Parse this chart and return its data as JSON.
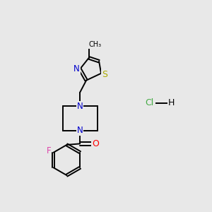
{
  "background_color": "#e8e8e8",
  "bond_color": "#000000",
  "atom_colors": {
    "N": "#0000cc",
    "O": "#ff0000",
    "F": "#dd44aa",
    "S": "#aaaa00",
    "C": "#000000",
    "Cl": "#44aa44",
    "H": "#000000"
  },
  "font_size_atom": 8.5,
  "title": ""
}
